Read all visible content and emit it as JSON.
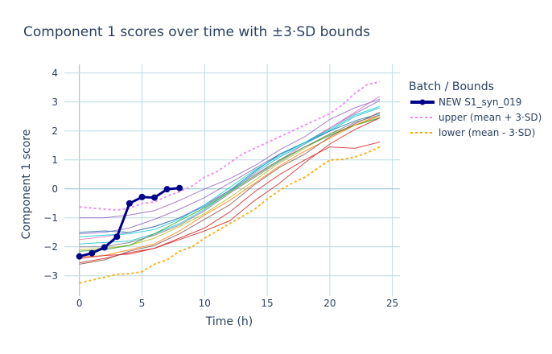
{
  "chart_data": {
    "type": "line",
    "title": "Component 1 scores over time with ±3·SD bounds",
    "xlabel": "Time (h)",
    "ylabel": "Component 1 score",
    "xlim": [
      -1.2,
      25.6
    ],
    "ylim": [
      -3.7,
      4.3
    ],
    "x_ticks": [
      0,
      5,
      10,
      15,
      20,
      25
    ],
    "y_ticks": [
      -3,
      -2,
      -1,
      0,
      1,
      2,
      3,
      4
    ],
    "grid": true,
    "legend": {
      "title": "Batch / Bounds",
      "placement": "right",
      "entries": [
        {
          "label": "NEW S1_syn_019",
          "style": "line-marker",
          "color": "#00008b"
        },
        {
          "label": "upper (mean + 3·SD)",
          "style": "dot",
          "color": "#ee82ee"
        },
        {
          "label": "lower (mean - 3·SD)",
          "style": "dot",
          "color": "#ffa500"
        }
      ]
    },
    "series": [
      {
        "name": "NEW S1_syn_019",
        "role": "highlight",
        "color": "#00008b",
        "x": [
          0,
          1,
          2,
          3,
          4,
          5,
          6,
          7,
          8
        ],
        "y": [
          -2.33,
          -2.22,
          -2.02,
          -1.65,
          -0.5,
          -0.28,
          -0.3,
          -0.01,
          0.03
        ]
      },
      {
        "name": "upper (mean + 3·SD)",
        "role": "upper",
        "color": "#ee82ee",
        "x": [
          0,
          1,
          2,
          3,
          4,
          5,
          6,
          7,
          8,
          9,
          10,
          11,
          12,
          13,
          14,
          15,
          16,
          17,
          18,
          19,
          20,
          21,
          22,
          23,
          24
        ],
        "y": [
          -0.62,
          -0.66,
          -0.7,
          -0.73,
          -0.66,
          -0.5,
          -0.45,
          -0.25,
          -0.1,
          0.1,
          0.4,
          0.6,
          0.9,
          1.2,
          1.4,
          1.6,
          1.8,
          2.0,
          2.2,
          2.4,
          2.6,
          2.9,
          3.3,
          3.6,
          3.7
        ]
      },
      {
        "name": "lower (mean - 3·SD)",
        "role": "lower",
        "color": "#ffa500",
        "x": [
          0,
          1,
          2,
          3,
          4,
          5,
          6,
          7,
          8,
          9,
          10,
          11,
          12,
          13,
          14,
          15,
          16,
          17,
          18,
          19,
          20,
          21,
          22,
          23,
          24
        ],
        "y": [
          -3.25,
          -3.15,
          -3.05,
          -2.95,
          -2.93,
          -2.86,
          -2.6,
          -2.45,
          -2.15,
          -2.0,
          -1.7,
          -1.45,
          -1.2,
          -0.95,
          -0.7,
          -0.35,
          -0.05,
          0.2,
          0.4,
          0.7,
          1.0,
          1.02,
          1.1,
          1.25,
          1.45
        ]
      },
      {
        "name": "ref 1",
        "role": "ref",
        "color": "#9467bd",
        "x": [
          0,
          2,
          4,
          6,
          8,
          10,
          12,
          14,
          16,
          18,
          20,
          22,
          24
        ],
        "y": [
          -1.0,
          -1.0,
          -0.9,
          -0.75,
          -0.4,
          0.0,
          0.35,
          0.8,
          1.35,
          1.8,
          2.4,
          2.8,
          3.1
        ]
      },
      {
        "name": "ref 2",
        "role": "ref",
        "color": "#9467bd",
        "x": [
          0,
          2,
          4,
          6,
          8,
          10,
          12,
          14,
          16,
          18,
          20,
          22,
          24
        ],
        "y": [
          -1.55,
          -1.5,
          -1.35,
          -1.05,
          -0.7,
          -0.3,
          0.2,
          0.7,
          1.2,
          1.6,
          2.1,
          2.6,
          3.05
        ]
      },
      {
        "name": "ref 3",
        "role": "ref",
        "color": "#e377c2",
        "x": [
          0,
          2,
          4,
          6,
          8,
          10,
          12,
          14,
          16,
          18,
          20,
          22,
          24
        ],
        "y": [
          -1.75,
          -1.65,
          -1.5,
          -1.3,
          -1.0,
          -0.55,
          -0.05,
          0.5,
          1.0,
          1.55,
          2.1,
          2.65,
          3.2
        ]
      },
      {
        "name": "ref 4",
        "role": "ref",
        "color": "#17becf",
        "x": [
          0,
          2,
          4,
          6,
          8,
          10,
          12,
          14,
          16,
          18,
          20,
          22,
          24
        ],
        "y": [
          -1.9,
          -1.85,
          -1.8,
          -1.55,
          -1.2,
          -0.7,
          -0.1,
          0.55,
          1.1,
          1.55,
          2.0,
          2.5,
          2.8
        ]
      },
      {
        "name": "ref 5",
        "role": "ref",
        "color": "#bcbd22",
        "x": [
          0,
          2,
          4,
          6,
          8,
          10,
          12,
          14,
          16,
          18,
          20,
          22,
          24
        ],
        "y": [
          -2.1,
          -2.05,
          -1.95,
          -1.7,
          -1.3,
          -0.85,
          -0.3,
          0.3,
          0.9,
          1.4,
          1.9,
          2.2,
          2.5
        ]
      },
      {
        "name": "ref 6",
        "role": "ref",
        "color": "#2ca02c",
        "x": [
          0,
          2,
          4,
          6,
          8,
          10,
          12,
          14,
          16,
          18,
          20,
          22,
          24
        ],
        "y": [
          -2.15,
          -2.1,
          -1.95,
          -1.55,
          -1.1,
          -0.65,
          -0.1,
          0.45,
          1.0,
          1.45,
          1.85,
          2.2,
          2.45
        ]
      },
      {
        "name": "ref 7",
        "role": "ref",
        "color": "#1f77b4",
        "x": [
          0,
          2,
          4,
          6,
          8,
          10,
          12,
          14,
          16,
          18,
          20,
          22,
          24
        ],
        "y": [
          -1.5,
          -1.45,
          -1.5,
          -1.3,
          -1.0,
          -0.6,
          -0.05,
          0.6,
          1.2,
          1.6,
          2.0,
          2.35,
          2.6
        ]
      },
      {
        "name": "ref 8",
        "role": "ref",
        "color": "#ff7f0e",
        "x": [
          0,
          2,
          4,
          6,
          8,
          10,
          12,
          14,
          16,
          18,
          20,
          22,
          24
        ],
        "y": [
          -2.35,
          -2.3,
          -2.1,
          -1.9,
          -1.45,
          -0.9,
          -0.4,
          0.2,
          0.8,
          1.3,
          1.75,
          2.2,
          2.55
        ]
      },
      {
        "name": "ref 9",
        "role": "ref",
        "color": "#d62728",
        "x": [
          0,
          2,
          4,
          6,
          8,
          10,
          12,
          14,
          16,
          18,
          20,
          22,
          24
        ],
        "y": [
          -2.4,
          -2.3,
          -2.25,
          -2.05,
          -1.7,
          -1.35,
          -0.8,
          -0.1,
          0.5,
          1.0,
          1.45,
          1.4,
          1.62
        ]
      },
      {
        "name": "ref 10",
        "role": "ref",
        "color": "#d62728",
        "x": [
          0,
          2,
          4,
          6,
          8,
          10,
          12,
          14,
          16,
          18,
          20,
          22,
          24
        ],
        "y": [
          -2.55,
          -2.4,
          -2.2,
          -2.05,
          -1.75,
          -1.45,
          -1.1,
          -0.4,
          0.2,
          0.9,
          1.55,
          2.05,
          2.45
        ]
      },
      {
        "name": "ref 11",
        "role": "ref",
        "color": "#8c564b",
        "x": [
          0,
          2,
          4,
          6,
          8,
          10,
          12,
          14,
          16,
          18,
          20,
          22,
          24
        ],
        "y": [
          -2.6,
          -2.45,
          -2.15,
          -1.95,
          -1.55,
          -1.05,
          -0.55,
          0.15,
          0.75,
          1.2,
          1.8,
          2.25,
          2.65
        ]
      },
      {
        "name": "ref 12",
        "role": "ref",
        "color": "#7f7f7f",
        "x": [
          0,
          2,
          4,
          6,
          8,
          10,
          12,
          14,
          16,
          18,
          20,
          22,
          24
        ],
        "y": [
          -2.0,
          -2.0,
          -1.85,
          -1.6,
          -1.25,
          -0.75,
          -0.15,
          0.4,
          0.95,
          1.45,
          1.9,
          2.3,
          2.55
        ]
      },
      {
        "name": "ref 13",
        "role": "ref",
        "color": "#00ced1",
        "x": [
          0,
          2,
          4,
          6,
          8,
          10,
          12,
          14,
          16,
          18,
          20,
          22,
          24
        ],
        "y": [
          -1.65,
          -1.6,
          -1.55,
          -1.4,
          -1.05,
          -0.55,
          0.05,
          0.65,
          1.15,
          1.6,
          2.05,
          2.55,
          2.85
        ]
      }
    ]
  }
}
